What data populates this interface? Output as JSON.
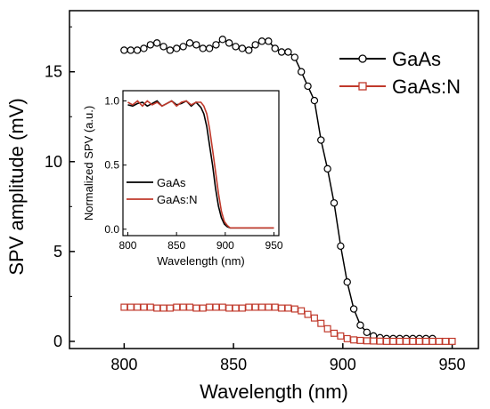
{
  "chart_data": [
    {
      "id": "main",
      "type": "line",
      "xlabel": "Wavelength (nm)",
      "ylabel": "SPV amplitude (mV)",
      "xlim": [
        775,
        962
      ],
      "ylim": [
        -0.4,
        18.4
      ],
      "xticks": [
        800,
        850,
        900,
        950
      ],
      "yticks": [
        0,
        5,
        10,
        15
      ],
      "legend_position": "top-right",
      "grid": false,
      "series": [
        {
          "name": "GaAs",
          "color": "#000000",
          "marker": "circle",
          "x": [
            800,
            803,
            806,
            809,
            812,
            815,
            818,
            821,
            824,
            827,
            830,
            833,
            836,
            839,
            842,
            845,
            848,
            851,
            854,
            857,
            860,
            863,
            866,
            869,
            872,
            875,
            878,
            881,
            884,
            887,
            890,
            893,
            896,
            899,
            902,
            905,
            908,
            911,
            914,
            917,
            920,
            923,
            926,
            929,
            932,
            935,
            938,
            941
          ],
          "values": [
            16.2,
            16.2,
            16.2,
            16.3,
            16.5,
            16.6,
            16.4,
            16.2,
            16.3,
            16.4,
            16.6,
            16.5,
            16.3,
            16.3,
            16.5,
            16.8,
            16.6,
            16.4,
            16.3,
            16.2,
            16.5,
            16.7,
            16.7,
            16.3,
            16.1,
            16.1,
            15.8,
            15.0,
            14.2,
            13.4,
            11.2,
            9.6,
            7.7,
            5.3,
            3.3,
            1.8,
            0.9,
            0.5,
            0.3,
            0.2,
            0.15,
            0.15,
            0.15,
            0.15,
            0.15,
            0.15,
            0.15,
            0.15
          ]
        },
        {
          "name": "GaAs:N",
          "color": "#c0392b",
          "marker": "square",
          "x": [
            800,
            803,
            806,
            809,
            812,
            815,
            818,
            821,
            824,
            827,
            830,
            833,
            836,
            839,
            842,
            845,
            848,
            851,
            854,
            857,
            860,
            863,
            866,
            869,
            872,
            875,
            878,
            881,
            884,
            887,
            890,
            893,
            896,
            899,
            902,
            905,
            908,
            911,
            914,
            917,
            920,
            923,
            926,
            929,
            932,
            935,
            938,
            941,
            944,
            947,
            950
          ],
          "values": [
            1.9,
            1.9,
            1.9,
            1.9,
            1.9,
            1.85,
            1.85,
            1.85,
            1.9,
            1.9,
            1.9,
            1.85,
            1.85,
            1.9,
            1.9,
            1.9,
            1.85,
            1.85,
            1.85,
            1.9,
            1.9,
            1.9,
            1.9,
            1.9,
            1.85,
            1.85,
            1.8,
            1.7,
            1.5,
            1.3,
            1.0,
            0.7,
            0.45,
            0.3,
            0.15,
            0.08,
            0.05,
            0.03,
            0.02,
            0.01,
            0.0,
            0.0,
            0.0,
            0.0,
            0.0,
            0.0,
            0.0,
            0.0,
            0.0,
            0.0,
            0.0
          ]
        }
      ]
    },
    {
      "id": "inset",
      "type": "line",
      "xlabel": "Wavelength (nm)",
      "ylabel": "Normalized SPV (a.u.)",
      "xlim": [
        795,
        955
      ],
      "ylim": [
        -0.05,
        1.08
      ],
      "xticks": [
        800,
        850,
        900,
        950
      ],
      "yticks": [
        0.0,
        0.5,
        1.0
      ],
      "ytick_labels": [
        "0.0",
        "0.5",
        "1.0"
      ],
      "legend_position": "bottom-left",
      "grid": false,
      "series": [
        {
          "name": "GaAs",
          "color": "#000000",
          "x": [
            800,
            805,
            810,
            815,
            820,
            825,
            830,
            835,
            840,
            845,
            850,
            855,
            860,
            865,
            870,
            875,
            878,
            881,
            884,
            887,
            890,
            893,
            896,
            899,
            902,
            905,
            910,
            915,
            920,
            930,
            940,
            950
          ],
          "values": [
            0.97,
            0.96,
            0.98,
            0.99,
            0.96,
            0.98,
            1.0,
            0.96,
            0.98,
            1.0,
            0.97,
            0.98,
            1.0,
            0.96,
            0.99,
            0.95,
            0.9,
            0.8,
            0.65,
            0.5,
            0.32,
            0.18,
            0.09,
            0.04,
            0.02,
            0.01,
            0.01,
            0.01,
            0.01,
            0.01,
            0.01,
            0.01
          ]
        },
        {
          "name": "GaAs:N",
          "color": "#c0392b",
          "x": [
            800,
            805,
            810,
            815,
            820,
            825,
            830,
            835,
            840,
            845,
            850,
            855,
            860,
            865,
            870,
            875,
            878,
            881,
            884,
            887,
            890,
            893,
            896,
            899,
            902,
            905,
            910,
            915,
            920,
            930,
            940,
            950
          ],
          "values": [
            0.99,
            0.97,
            1.0,
            0.96,
            1.0,
            0.97,
            0.99,
            0.96,
            0.98,
            1.0,
            0.96,
            0.99,
            1.0,
            0.97,
            0.99,
            0.99,
            0.96,
            0.9,
            0.78,
            0.62,
            0.45,
            0.28,
            0.14,
            0.06,
            0.03,
            0.01,
            0.01,
            0.01,
            0.01,
            0.01,
            0.01,
            0.01
          ]
        }
      ]
    }
  ]
}
